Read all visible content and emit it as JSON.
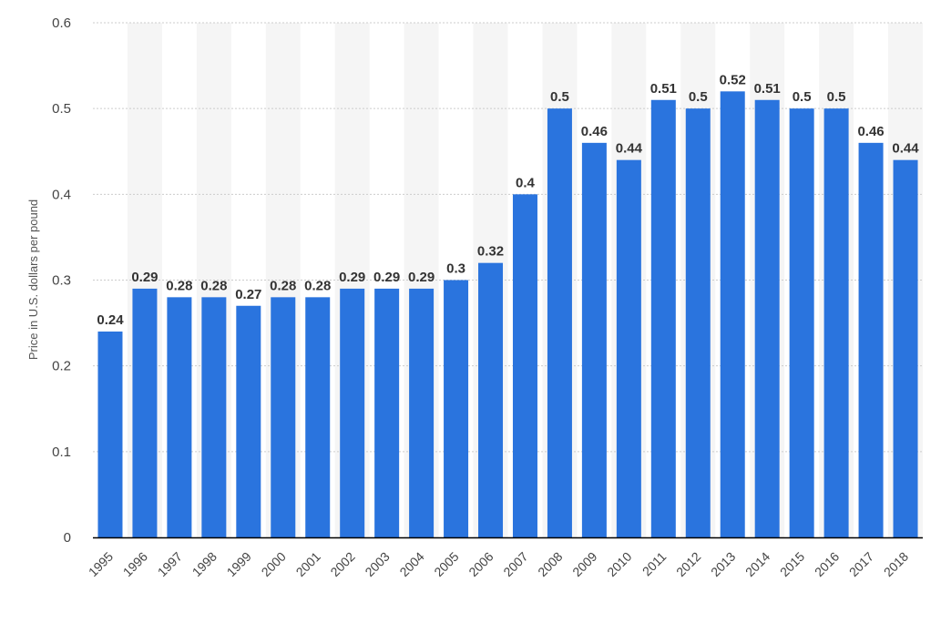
{
  "chart_data": {
    "type": "bar",
    "title": "",
    "xlabel": "",
    "ylabel": "Price in U.S. dollars per pound",
    "categories": [
      "1995",
      "1996",
      "1997",
      "1998",
      "1999",
      "2000",
      "2001",
      "2002",
      "2003",
      "2004",
      "2005",
      "2006",
      "2007",
      "2008",
      "2009",
      "2010",
      "2011",
      "2012",
      "2013",
      "2014",
      "2015",
      "2016",
      "2017",
      "2018"
    ],
    "values": [
      0.24,
      0.29,
      0.28,
      0.28,
      0.27,
      0.28,
      0.28,
      0.29,
      0.29,
      0.29,
      0.3,
      0.32,
      0.4,
      0.5,
      0.46,
      0.44,
      0.51,
      0.5,
      0.52,
      0.51,
      0.5,
      0.5,
      0.46,
      0.44
    ],
    "value_labels": [
      "0.24",
      "0.29",
      "0.28",
      "0.28",
      "0.27",
      "0.28",
      "0.28",
      "0.29",
      "0.29",
      "0.29",
      "0.3",
      "0.32",
      "0.4",
      "0.5",
      "0.46",
      "0.44",
      "0.51",
      "0.5",
      "0.52",
      "0.51",
      "0.5",
      "0.5",
      "0.46",
      "0.44"
    ],
    "ylim": [
      0,
      0.6
    ],
    "yticks": [
      0,
      0.1,
      0.2,
      0.3,
      0.4,
      0.5,
      0.6
    ],
    "ytick_labels": [
      "0",
      "0.1",
      "0.2",
      "0.3",
      "0.4",
      "0.5",
      "0.6"
    ],
    "grid": true,
    "legend": "none",
    "colors": {
      "bar": "#2a74de",
      "band": "#f5f5f5",
      "grid": "#cccccc",
      "axis": "#000000"
    }
  }
}
